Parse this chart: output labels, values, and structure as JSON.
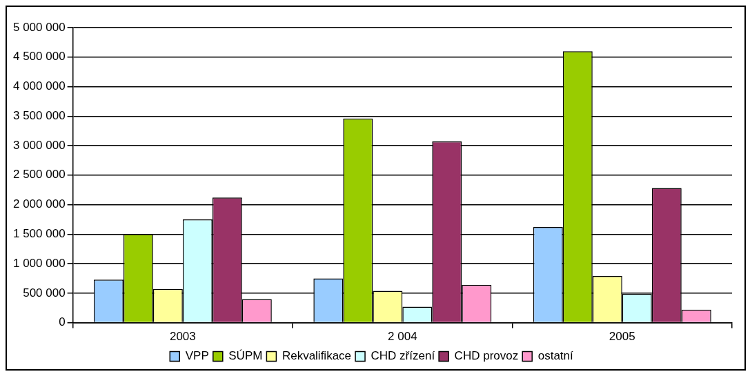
{
  "chart_data": {
    "type": "bar",
    "categories": [
      "2003",
      "2 004",
      "2005"
    ],
    "series": [
      {
        "name": "VPP",
        "color": "#99ccff",
        "values": [
          730000,
          750000,
          1620000
        ]
      },
      {
        "name": "SÚPM",
        "color": "#99cc00",
        "values": [
          1500000,
          3460000,
          4600000
        ]
      },
      {
        "name": "Rekvalifikace",
        "color": "#ffff99",
        "values": [
          570000,
          540000,
          790000
        ]
      },
      {
        "name": "CHD zřízení",
        "color": "#ccffff",
        "values": [
          1750000,
          270000,
          490000
        ]
      },
      {
        "name": "CHD provoz",
        "color": "#993366",
        "values": [
          2120000,
          3070000,
          2280000
        ]
      },
      {
        "name": "ostatní",
        "color": "#ff99cc",
        "values": [
          400000,
          640000,
          220000
        ]
      }
    ],
    "ylim": [
      0,
      5000000
    ],
    "yticks": [
      {
        "value": 0,
        "label": "0"
      },
      {
        "value": 500000,
        "label": "500 000"
      },
      {
        "value": 1000000,
        "label": "1 000 000"
      },
      {
        "value": 1500000,
        "label": "1 500 000"
      },
      {
        "value": 2000000,
        "label": "2 000 000"
      },
      {
        "value": 2500000,
        "label": "2 500 000"
      },
      {
        "value": 3000000,
        "label": "3 000 000"
      },
      {
        "value": 3500000,
        "label": "3 500 000"
      },
      {
        "value": 4000000,
        "label": "4 000 000"
      },
      {
        "value": 4500000,
        "label": "4 500 000"
      },
      {
        "value": 5000000,
        "label": "5 000 000"
      }
    ],
    "grid": "y",
    "legend": "bottom"
  }
}
